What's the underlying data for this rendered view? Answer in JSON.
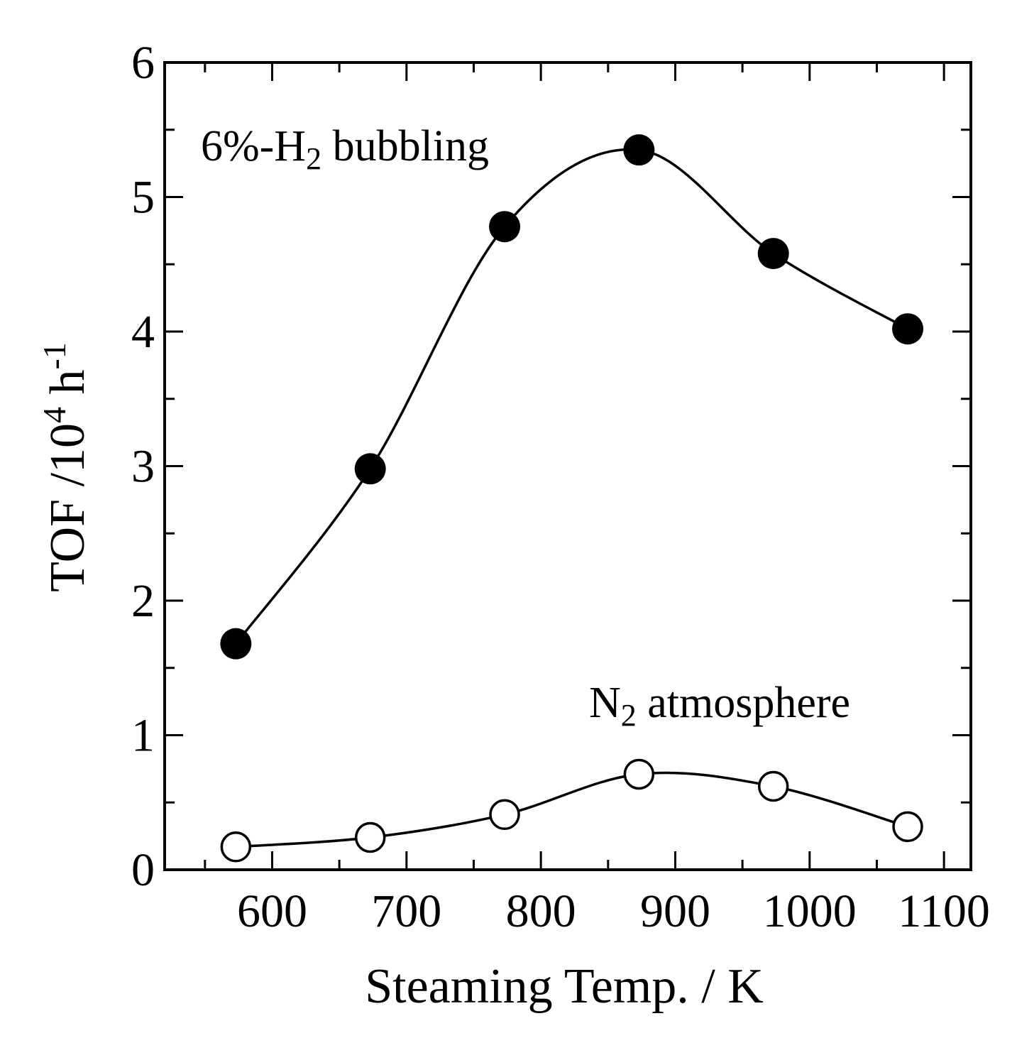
{
  "chart_data": {
    "type": "scatter",
    "xlabel": "Steaming Temp. / K",
    "ylabel": {
      "main": "TOF /10",
      "sup1": "4",
      "unit": " h",
      "sup2": "-1"
    },
    "xlim": [
      520,
      1120
    ],
    "ylim": [
      0,
      6
    ],
    "x_ticks": [
      600,
      700,
      800,
      900,
      1000,
      1100
    ],
    "y_ticks": [
      0,
      1,
      2,
      3,
      4,
      5,
      6
    ],
    "grid": false,
    "legend": "none",
    "series": [
      {
        "name": "6%-H2 bubbling",
        "marker": "filled-circle",
        "color": "#000000",
        "x": [
          573,
          673,
          773,
          873,
          973,
          1073
        ],
        "y": [
          1.68,
          2.98,
          4.78,
          5.35,
          4.58,
          4.02
        ]
      },
      {
        "name": "N2 atmosphere",
        "marker": "open-circle",
        "color": "#000000",
        "x": [
          573,
          673,
          773,
          873,
          973,
          1073
        ],
        "y": [
          0.17,
          0.24,
          0.41,
          0.71,
          0.62,
          0.32
        ]
      }
    ],
    "annotations": {
      "h2": {
        "pre": "6%-H",
        "sub": "2",
        "post": " bubbling"
      },
      "n2": {
        "pre": "N",
        "sub": "2",
        "post": " atmosphere"
      }
    }
  }
}
